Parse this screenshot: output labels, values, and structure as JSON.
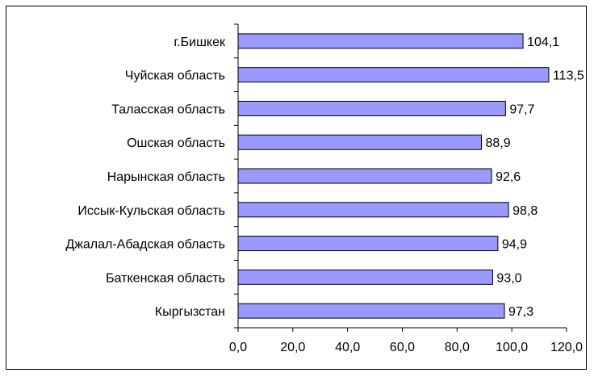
{
  "chart_data": {
    "type": "bar",
    "orientation": "horizontal",
    "title": "",
    "xlabel": "",
    "ylabel": "",
    "categories": [
      "г.Бишкек",
      "Чуйская область",
      "Таласская область",
      "Ошская область",
      "Нарынская область",
      "Иссык-Кульская область",
      "Джалал-Абадская область",
      "Баткенская область",
      "Кыргызстан"
    ],
    "values": [
      104.1,
      113.5,
      97.7,
      88.9,
      92.6,
      98.8,
      94.9,
      93.0,
      97.3
    ],
    "value_labels": [
      "104,1",
      "113,5",
      "97,7",
      "88,9",
      "92,6",
      "98,8",
      "94,9",
      "93,0",
      "97,3"
    ],
    "xlim": [
      0,
      120
    ],
    "xticks": [
      "0,0",
      "20,0",
      "40,0",
      "60,0",
      "80,0",
      "100,0",
      "120,0"
    ],
    "grid": false,
    "legend": "none",
    "colors": {
      "bar_fill": "#9999ff",
      "bar_stroke": "#000000",
      "axis": "#000000"
    }
  }
}
